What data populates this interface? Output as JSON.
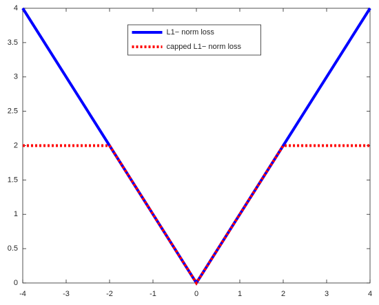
{
  "chart_data": {
    "type": "line",
    "x": [
      -4,
      -2,
      0,
      2,
      4
    ],
    "series": [
      {
        "name": "L1− norm loss",
        "color": "#0000ff",
        "line_style": "solid",
        "values": [
          4,
          2,
          0,
          2,
          4
        ]
      },
      {
        "name": "capped L1− norm loss",
        "color": "#ff0000",
        "line_style": "dotted",
        "values": [
          2,
          2,
          0,
          2,
          2
        ]
      }
    ],
    "xlim": [
      -4,
      4
    ],
    "xticks": [
      -4,
      -3,
      -2,
      -1,
      0,
      1,
      2,
      3,
      4
    ],
    "ylim": [
      0,
      4
    ],
    "yticks": [
      0,
      0.5,
      1,
      1.5,
      2,
      2.5,
      3,
      3.5,
      4
    ],
    "grid": false,
    "legend": "top"
  }
}
